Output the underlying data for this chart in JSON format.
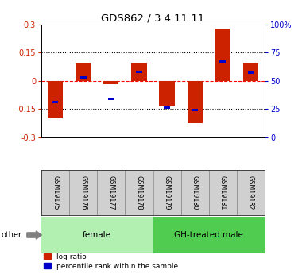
{
  "title": "GDS862 / 3.4.11.11",
  "samples": [
    "GSM19175",
    "GSM19176",
    "GSM19177",
    "GSM19178",
    "GSM19179",
    "GSM19180",
    "GSM19181",
    "GSM19182"
  ],
  "log_ratio": [
    -0.2,
    0.095,
    -0.018,
    0.098,
    -0.13,
    -0.225,
    0.28,
    0.098
  ],
  "percentile_rank": [
    31,
    53,
    34,
    58,
    26,
    24,
    67,
    57
  ],
  "ylim_left": [
    -0.3,
    0.3
  ],
  "ylim_right": [
    0,
    100
  ],
  "yticks_left": [
    -0.3,
    -0.15,
    0,
    0.15,
    0.3
  ],
  "yticks_right": [
    0,
    25,
    50,
    75,
    100
  ],
  "ytick_labels_left": [
    "-0.3",
    "-0.15",
    "0",
    "0.15",
    "0.3"
  ],
  "ytick_labels_right": [
    "0",
    "25",
    "50",
    "75",
    "100%"
  ],
  "hlines": [
    -0.15,
    0,
    0.15
  ],
  "hline_styles": [
    "dotted",
    "dashed",
    "dotted"
  ],
  "hline_colors": [
    "black",
    "red",
    "black"
  ],
  "groups": [
    {
      "label": "female",
      "samples": [
        0,
        1,
        2,
        3
      ],
      "color": "#b2f0b2"
    },
    {
      "label": "GH-treated male",
      "samples": [
        4,
        5,
        6,
        7
      ],
      "color": "#50cc50"
    }
  ],
  "bar_color_red": "#cc2200",
  "bar_color_blue": "#0000cc",
  "bar_width": 0.55,
  "blue_bar_width": 0.22,
  "blue_bar_height": 0.013,
  "background_color": "#ffffff",
  "plot_bg_color": "#ffffff",
  "label_log_ratio": "log ratio",
  "label_percentile": "percentile rank within the sample",
  "other_label": "other",
  "tick_label_color_left": "#cc2200",
  "tick_label_color_right": "#0000cc",
  "sample_box_color": "#d0d0d0"
}
